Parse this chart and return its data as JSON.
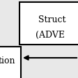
{
  "bg_color": "#e8e8e8",
  "box1_text_line1": "Struct",
  "box1_text_line2": "(ADVE",
  "box2_text": "tion",
  "arrow_color": "#000000",
  "box_edge_color": "#000000",
  "box_fill_color": "#ffffff",
  "text_color": "#000000",
  "fig_w": 1.13,
  "fig_h": 1.13,
  "dpi": 100
}
